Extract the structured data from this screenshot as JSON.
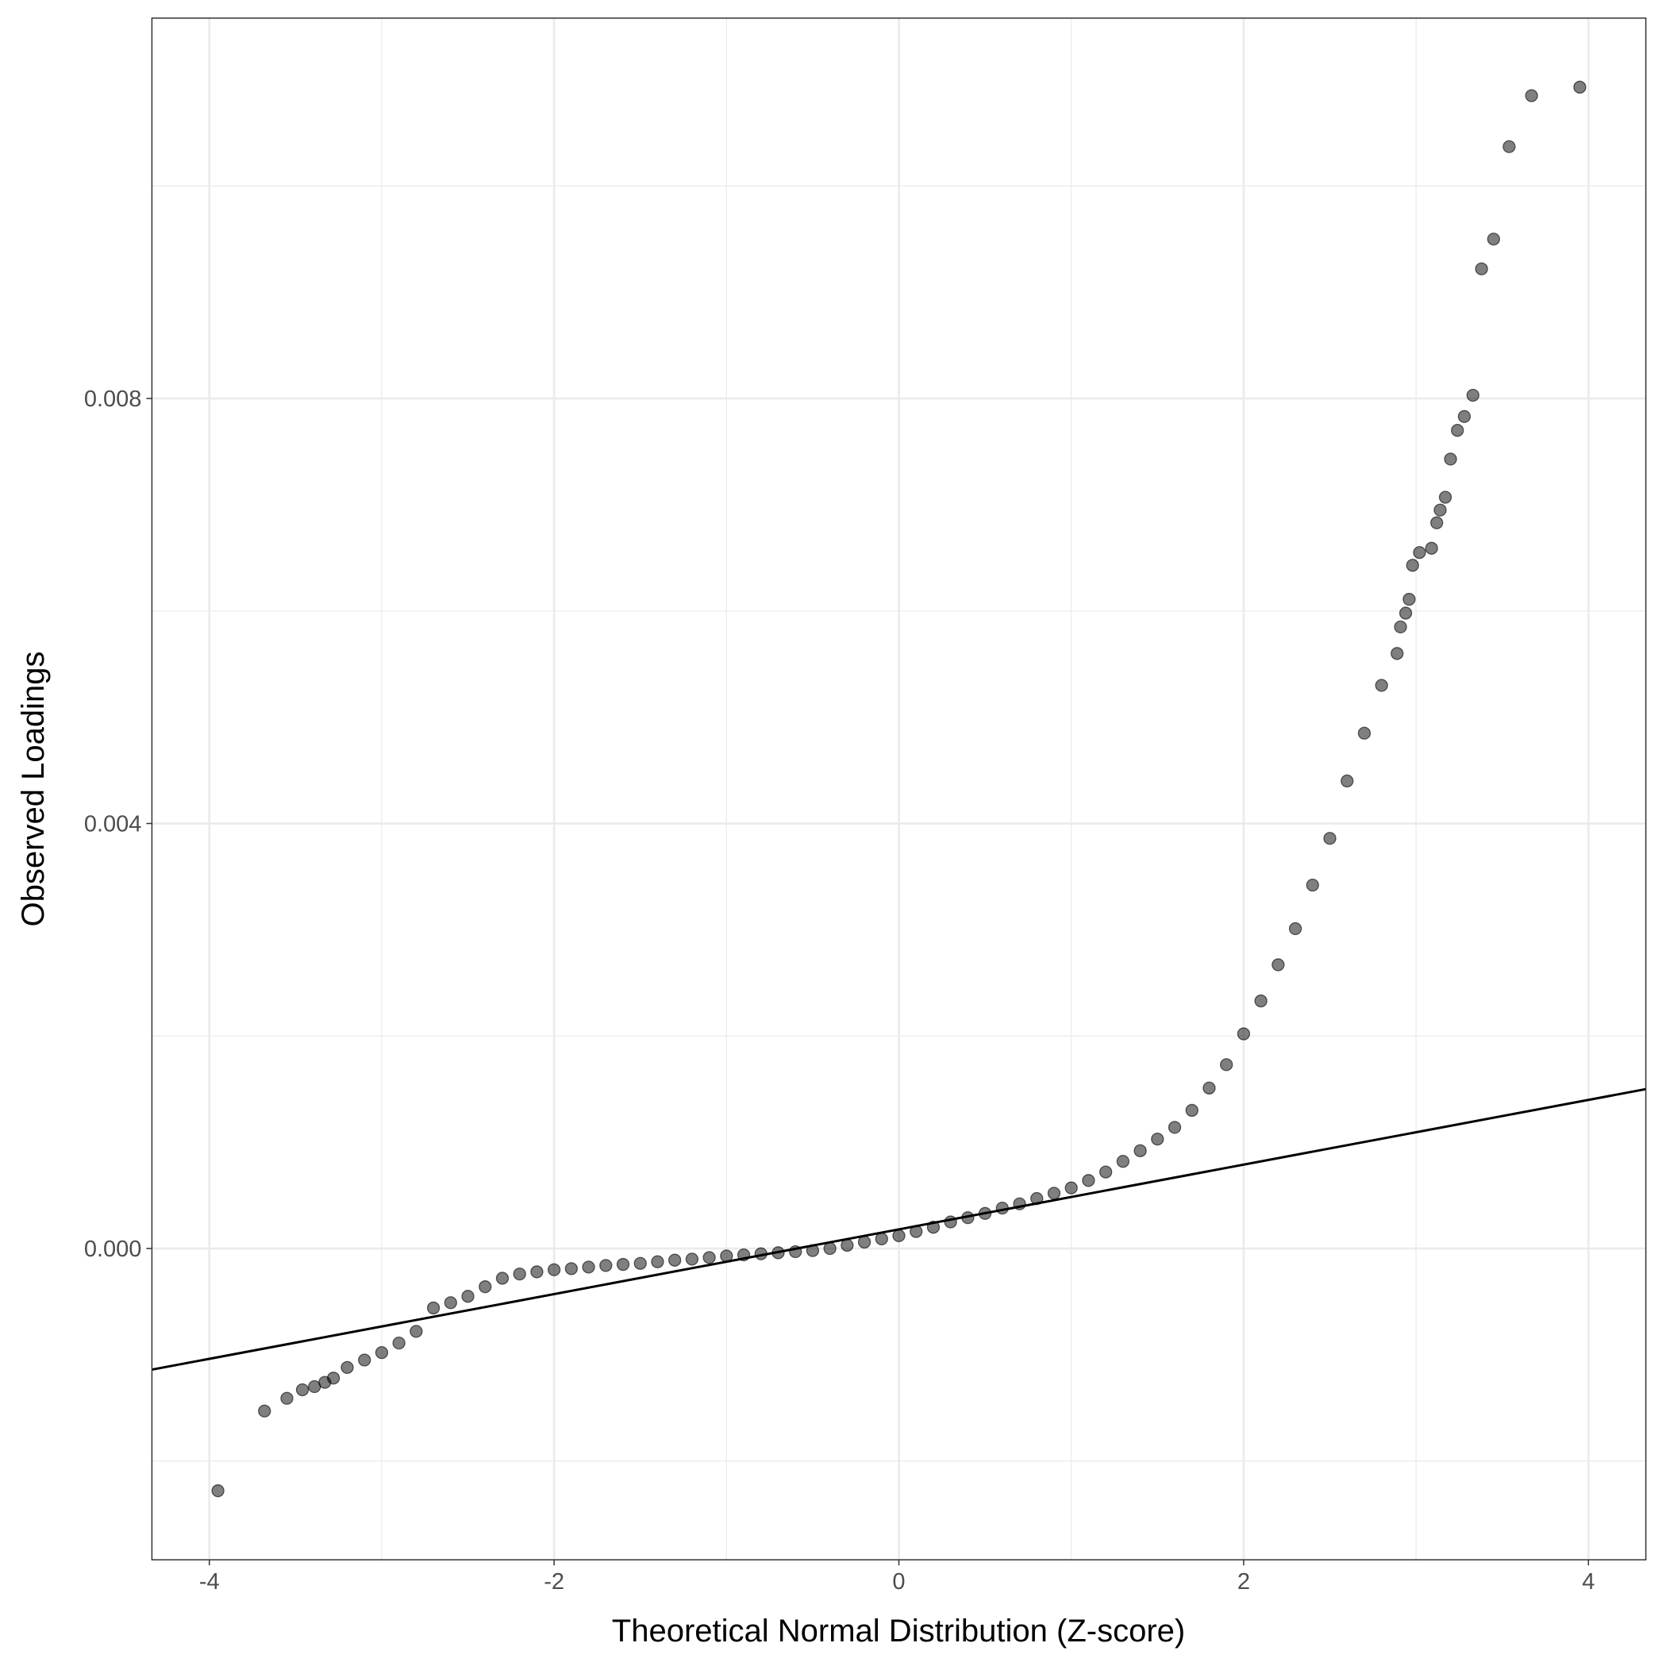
{
  "chart_data": {
    "type": "scatter",
    "x_label": "Theoretical Normal Distribution (Z-score)",
    "y_label": "Observed Loadings",
    "xlim": [
      -4.333,
      4.333
    ],
    "ylim": [
      -0.00293,
      0.01158
    ],
    "xticks": [
      -4,
      -2,
      0,
      2,
      4
    ],
    "yticks": [
      {
        "value": 0,
        "label": "0.000"
      },
      0.004,
      0.008
    ],
    "x_minor_ticks": [
      -3,
      -1,
      1,
      3
    ],
    "y_minor_ticks": [
      -0.002,
      0.002,
      0.006,
      0.01
    ],
    "grid": true,
    "series": [
      {
        "color": "#000000",
        "x": [
          -3.95,
          -3.68,
          -3.55,
          -3.46,
          -3.39,
          -3.33,
          -3.28,
          -3.2,
          -3.1,
          -3.0,
          -2.9,
          -2.8,
          -2.7,
          -2.6,
          -2.5,
          -2.4,
          -2.3,
          -2.2,
          -2.1,
          -2.0,
          -1.9,
          -1.8,
          -1.7,
          -1.6,
          -1.5,
          -1.4,
          -1.3,
          -1.2,
          -1.1,
          -1.0,
          -0.9,
          -0.8,
          -0.7,
          -0.6,
          -0.5,
          -0.4,
          -0.3,
          -0.2,
          -0.1,
          0.0,
          0.1,
          0.2,
          0.3,
          0.4,
          0.5,
          0.6,
          0.7,
          0.8,
          0.9,
          1.0,
          1.1,
          1.2,
          1.3,
          1.4,
          1.5,
          1.6,
          1.7,
          1.8,
          1.9,
          2.0,
          2.1,
          2.2,
          2.3,
          2.4,
          2.5,
          2.6,
          2.7,
          2.8,
          2.89,
          2.91,
          2.94,
          2.96,
          2.98,
          3.02,
          3.09,
          3.12,
          3.14,
          3.17,
          3.2,
          3.24,
          3.28,
          3.33,
          3.38,
          3.45,
          3.54,
          3.67,
          3.95
        ],
        "y": [
          -0.00228,
          -0.00153,
          -0.00141,
          -0.00133,
          -0.0013,
          -0.00126,
          -0.00122,
          -0.00112,
          -0.00105,
          -0.00098,
          -0.00089,
          -0.00078,
          -0.00056,
          -0.00051,
          -0.00045,
          -0.00036,
          -0.00028,
          -0.00024,
          -0.00022,
          -0.0002,
          -0.00019,
          -0.000175,
          -0.00016,
          -0.00015,
          -0.00014,
          -0.000125,
          -0.00011,
          -0.0001,
          -8.5e-05,
          -7e-05,
          -6e-05,
          -5e-05,
          -4e-05,
          -3e-05,
          -2e-05,
          0.0,
          3e-05,
          6e-05,
          9e-05,
          0.00012,
          0.00016,
          0.0002,
          0.00025,
          0.00029,
          0.00033,
          0.00038,
          0.00042,
          0.00047,
          0.00052,
          0.00057,
          0.00064,
          0.00072,
          0.00082,
          0.00092,
          0.00103,
          0.00114,
          0.0013,
          0.00151,
          0.00173,
          0.00202,
          0.00233,
          0.00267,
          0.00301,
          0.00342,
          0.00386,
          0.0044,
          0.00485,
          0.0053,
          0.0056,
          0.00585,
          0.00598,
          0.00611,
          0.00643,
          0.00655,
          0.00659,
          0.00683,
          0.00695,
          0.00707,
          0.00743,
          0.0077,
          0.00783,
          0.00803,
          0.00922,
          0.0095,
          0.01037,
          0.01085,
          0.01093
        ]
      }
    ],
    "reference_line": {
      "x": [
        -4.333,
        4.333
      ],
      "y": [
        -0.00114,
        0.0015
      ],
      "color": "#000000"
    }
  }
}
